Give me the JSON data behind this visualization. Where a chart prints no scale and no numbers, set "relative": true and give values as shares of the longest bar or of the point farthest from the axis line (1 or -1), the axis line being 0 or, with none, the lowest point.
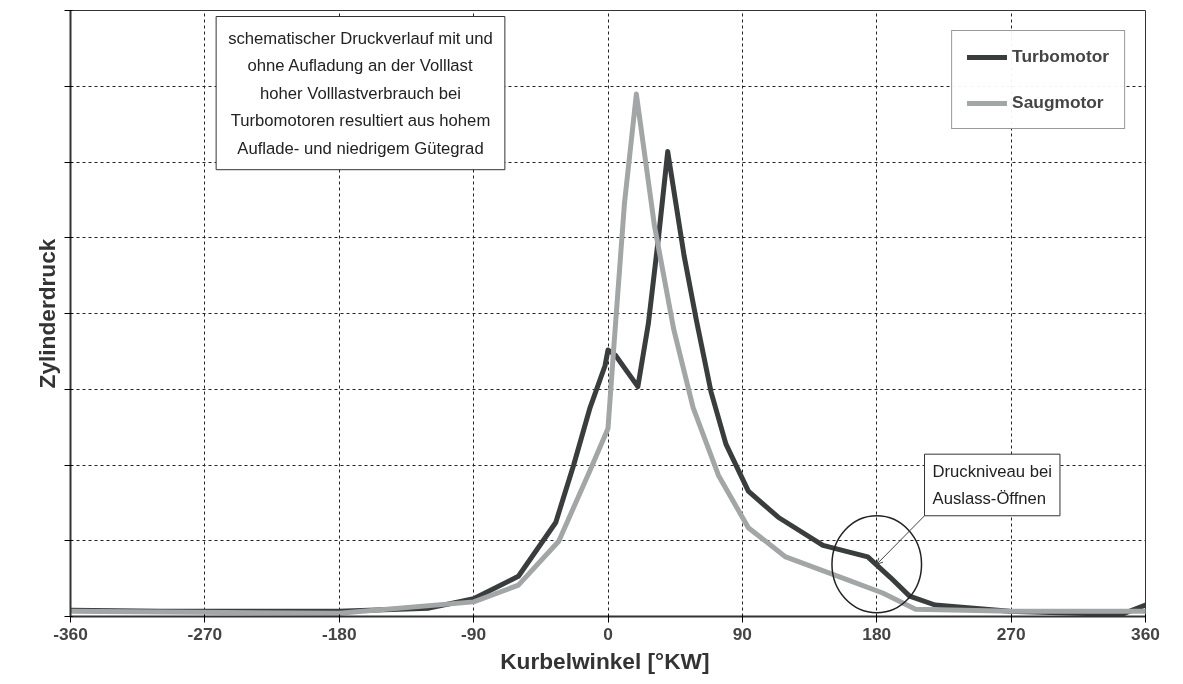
{
  "chart_data": {
    "type": "line",
    "relative": true,
    "xlabel": "Kurbelwinkel  [°KW]",
    "ylabel": "Zylinderdruck",
    "xlim": [
      -360,
      360
    ],
    "xticks": [
      -360,
      -270,
      -180,
      -90,
      0,
      90,
      180,
      270,
      360
    ],
    "grid": true,
    "legend": "top right",
    "series": [
      {
        "name": "Turbomotor",
        "color": "#3a3d3e",
        "x": [
          -360,
          -300,
          -180,
          -120,
          -90,
          -60,
          -35,
          -23,
          -12,
          -2,
          0,
          5,
          20,
          27,
          34,
          40,
          51,
          59,
          69,
          79,
          94,
          114,
          144,
          174,
          189,
          202,
          219,
          269,
          344,
          360
        ],
        "values": [
          0.012,
          0.01,
          0.01,
          0.016,
          0.034,
          0.077,
          0.18,
          0.29,
          0.4,
          0.48,
          0.51,
          0.5,
          0.44,
          0.56,
          0.73,
          0.89,
          0.69,
          0.57,
          0.43,
          0.33,
          0.24,
          0.19,
          0.136,
          0.114,
          0.075,
          0.039,
          0.022,
          0.01,
          0.004,
          0.022
        ]
      },
      {
        "name": "Saugmotor",
        "color": "#a3a6a6",
        "x": [
          -360,
          -180,
          -90,
          -60,
          -33,
          -12,
          0,
          4,
          11,
          19,
          31,
          44,
          57,
          74,
          94,
          119,
          156,
          184,
          206,
          270,
          360
        ],
        "values": [
          0.01,
          0.006,
          0.028,
          0.06,
          0.144,
          0.28,
          0.36,
          0.52,
          0.79,
          1.0,
          0.75,
          0.55,
          0.4,
          0.27,
          0.17,
          0.114,
          0.075,
          0.045,
          0.014,
          0.01,
          0.01
        ]
      }
    ],
    "annotations": [
      "schematischer Druckverlauf mit und\nohne Aufladung an der Volllast\nhoher Volllastverbrauch bei\nTurbomotoren resultiert aus hohem\nAuflade- und niedrigem Gütegrad",
      {
        "text": "Druckniveau bei\nAuslass-Öffnen",
        "x": 180,
        "y": 0.1
      }
    ]
  }
}
